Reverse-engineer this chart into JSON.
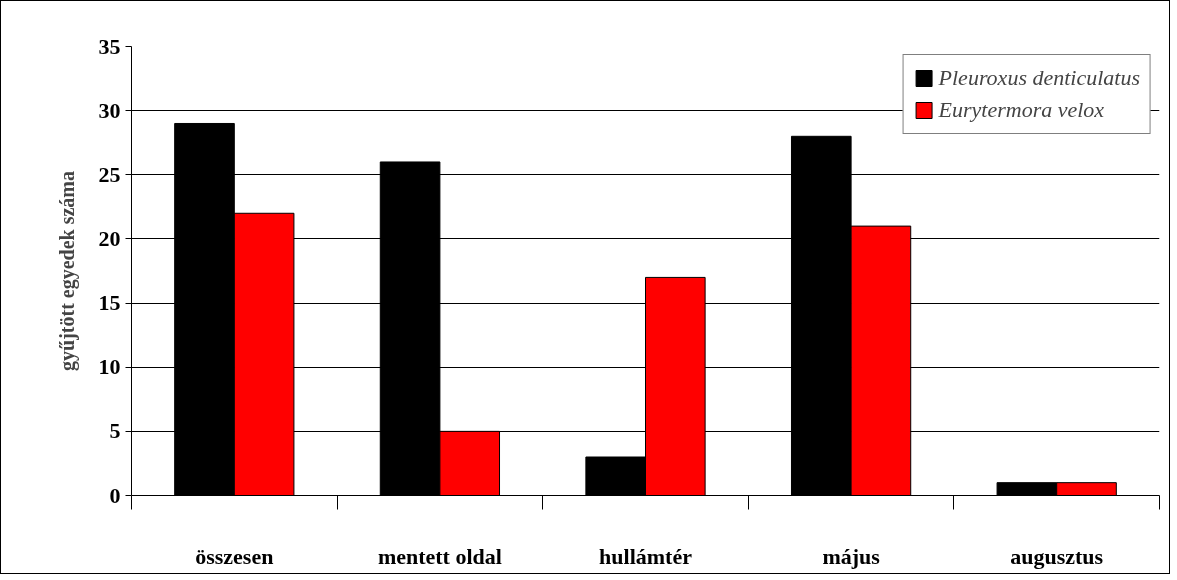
{
  "chart_data": {
    "type": "bar",
    "ylabel": "gyűjtött egyedek száma",
    "categories": [
      "összesen",
      "mentett oldal",
      "hullámtér",
      "május",
      "augusztus"
    ],
    "series": [
      {
        "name": "Pleuroxus denticulatus",
        "color": "#000000",
        "values": [
          29,
          26,
          3,
          28,
          1
        ]
      },
      {
        "name": "Eurytermora velox",
        "color": "#ff0000",
        "values": [
          22,
          5,
          17,
          21,
          1
        ]
      }
    ],
    "ylim": [
      0,
      35
    ],
    "yticks": [
      0,
      5,
      10,
      15,
      20,
      25,
      30,
      35
    ],
    "grid": "y",
    "legend": "top right"
  }
}
